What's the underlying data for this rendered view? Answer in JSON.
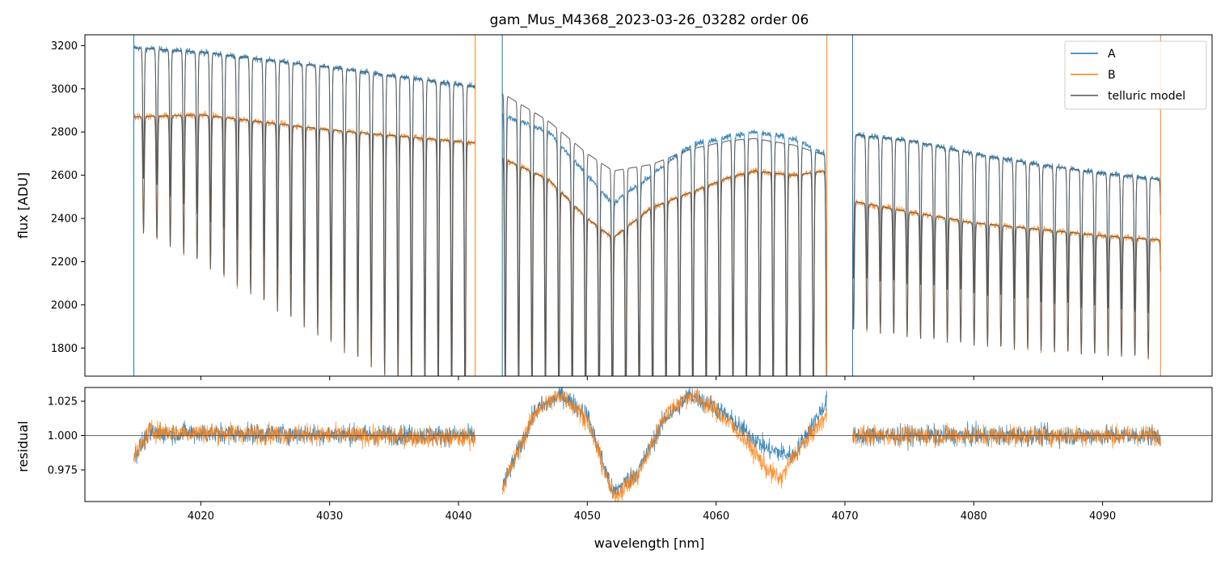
{
  "chart_data": [
    {
      "type": "line",
      "panel": "top",
      "title": "gam_Mus_M4368_2023-03-26_03282  order 06",
      "xlabel": "",
      "ylabel": "flux [ADU]",
      "xlim": [
        4011.0,
        4098.5
      ],
      "ylim": [
        1670,
        3250
      ],
      "yticks": [
        1800,
        2000,
        2200,
        2400,
        2600,
        2800,
        3000,
        3200
      ],
      "xticks": [
        4020,
        4030,
        4040,
        4050,
        4060,
        4070,
        4080,
        4090
      ],
      "legend": {
        "position": "top-right",
        "entries": [
          "A",
          "B",
          "telluric model"
        ]
      },
      "colors": {
        "A": "#1f77b4",
        "B": "#ff7f0e",
        "telluric model": "#555555"
      },
      "segments": [
        {
          "x_range": [
            4014.8,
            4041.3
          ]
        },
        {
          "x_range": [
            4043.4,
            4068.6
          ]
        },
        {
          "x_range": [
            4070.6,
            4094.5
          ]
        }
      ],
      "series": [
        {
          "name": "A",
          "continuum": [
            [
              4014.8,
              3190
            ],
            [
              4020,
              3170
            ],
            [
              4030,
              3100
            ],
            [
              4041.3,
              3010
            ],
            [
              4043.4,
              2880
            ],
            [
              4047,
              2800
            ],
            [
              4050,
              2600
            ],
            [
              4052,
              2470
            ],
            [
              4055,
              2600
            ],
            [
              4058,
              2740
            ],
            [
              4061,
              2780
            ],
            [
              4063,
              2800
            ],
            [
              4066,
              2770
            ],
            [
              4068.6,
              2690
            ],
            [
              4070.6,
              2790
            ],
            [
              4075,
              2760
            ],
            [
              4080,
              2700
            ],
            [
              4085,
              2650
            ],
            [
              4090,
              2610
            ],
            [
              4094.5,
              2580
            ]
          ]
        },
        {
          "name": "B",
          "continuum": [
            [
              4014.8,
              2870
            ],
            [
              4020,
              2880
            ],
            [
              4030,
              2810
            ],
            [
              4041.3,
              2750
            ],
            [
              4043.4,
              2680
            ],
            [
              4047,
              2580
            ],
            [
              4050,
              2400
            ],
            [
              4052,
              2310
            ],
            [
              4055,
              2450
            ],
            [
              4058,
              2520
            ],
            [
              4061,
              2590
            ],
            [
              4063,
              2620
            ],
            [
              4066,
              2600
            ],
            [
              4068.6,
              2620
            ],
            [
              4070.6,
              2480
            ],
            [
              4075,
              2430
            ],
            [
              4080,
              2380
            ],
            [
              4085,
              2350
            ],
            [
              4090,
              2320
            ],
            [
              4094.5,
              2300
            ]
          ]
        },
        {
          "name": "telluric model",
          "continuum": [
            [
              4043.4,
              2980
            ],
            [
              4047,
              2850
            ],
            [
              4050,
              2700
            ],
            [
              4052,
              2620
            ],
            [
              4055,
              2650
            ],
            [
              4058,
              2720
            ],
            [
              4061,
              2760
            ],
            [
              4063,
              2770
            ],
            [
              4066,
              2740
            ],
            [
              4068.6,
              2690
            ]
          ]
        }
      ]
    },
    {
      "type": "line",
      "panel": "bottom",
      "xlabel": "wavelength [nm]",
      "ylabel": "residual",
      "xlim": [
        4011.0,
        4098.5
      ],
      "ylim": [
        0.952,
        1.035
      ],
      "yticks": [
        0.975,
        1.0,
        1.025
      ],
      "ytick_labels": [
        "0.975",
        "1.000",
        "1.025"
      ],
      "xticks": [
        4020,
        4030,
        4040,
        4050,
        4060,
        4070,
        4080,
        4090
      ],
      "reference_line": 1.0,
      "series": [
        {
          "name": "A",
          "trend": [
            [
              4014.8,
              0.985
            ],
            [
              4016,
              1.002
            ],
            [
              4041.3,
              1.0
            ],
            [
              4043.4,
              0.962
            ],
            [
              4046,
              1.018
            ],
            [
              4048,
              1.03
            ],
            [
              4050,
              1.015
            ],
            [
              4052,
              0.958
            ],
            [
              4054,
              0.975
            ],
            [
              4056,
              1.012
            ],
            [
              4058,
              1.03
            ],
            [
              4060,
              1.02
            ],
            [
              4062,
              1.005
            ],
            [
              4064,
              0.99
            ],
            [
              4066,
              0.985
            ],
            [
              4068.6,
              1.025
            ],
            [
              4070.6,
              1.0
            ],
            [
              4094.5,
              1.0
            ]
          ]
        },
        {
          "name": "B",
          "trend": [
            [
              4014.8,
              0.983
            ],
            [
              4016,
              1.003
            ],
            [
              4041.3,
              0.998
            ],
            [
              4043.4,
              0.962
            ],
            [
              4046,
              1.018
            ],
            [
              4048,
              1.03
            ],
            [
              4050,
              1.012
            ],
            [
              4052,
              0.955
            ],
            [
              4054,
              0.972
            ],
            [
              4056,
              1.015
            ],
            [
              4058,
              1.03
            ],
            [
              4060,
              1.018
            ],
            [
              4062,
              1.0
            ],
            [
              4064,
              0.975
            ],
            [
              4065,
              0.968
            ],
            [
              4066,
              0.985
            ],
            [
              4068.6,
              1.015
            ],
            [
              4070.6,
              1.0
            ],
            [
              4094.5,
              1.0
            ]
          ]
        }
      ]
    }
  ]
}
